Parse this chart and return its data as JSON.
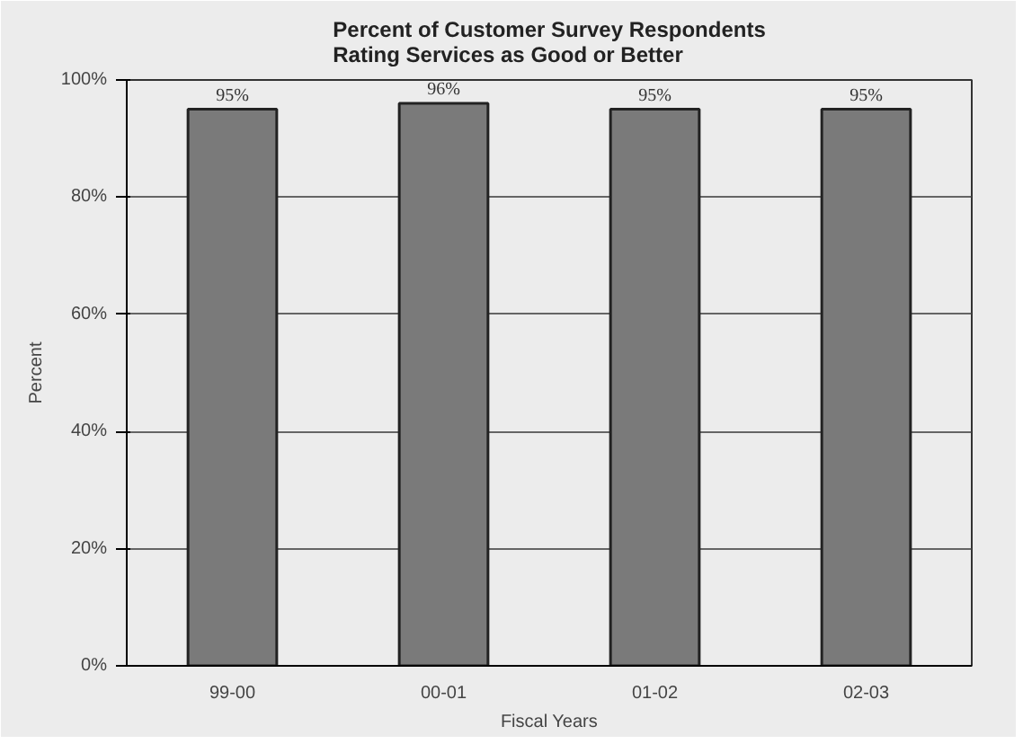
{
  "chart_data": {
    "type": "bar",
    "title": "Percent of Customer Survey Respondents\nRating Services as Good or Better",
    "xlabel": "Fiscal Years",
    "ylabel": "Percent",
    "categories": [
      "99-00",
      "00-01",
      "01-02",
      "02-03"
    ],
    "values": [
      95,
      96,
      95,
      95
    ],
    "value_labels": [
      "95%",
      "96%",
      "95%",
      "95%"
    ],
    "color": "#7a7a7a",
    "ylim": [
      0,
      100
    ],
    "yticks": [
      {
        "value": 0,
        "label": "0%"
      },
      {
        "value": 20,
        "label": "20%"
      },
      {
        "value": 40,
        "label": "40%"
      },
      {
        "value": 60,
        "label": "60%"
      },
      {
        "value": 80,
        "label": "80%"
      },
      {
        "value": 100,
        "label": "100%"
      }
    ],
    "grid": "y"
  }
}
